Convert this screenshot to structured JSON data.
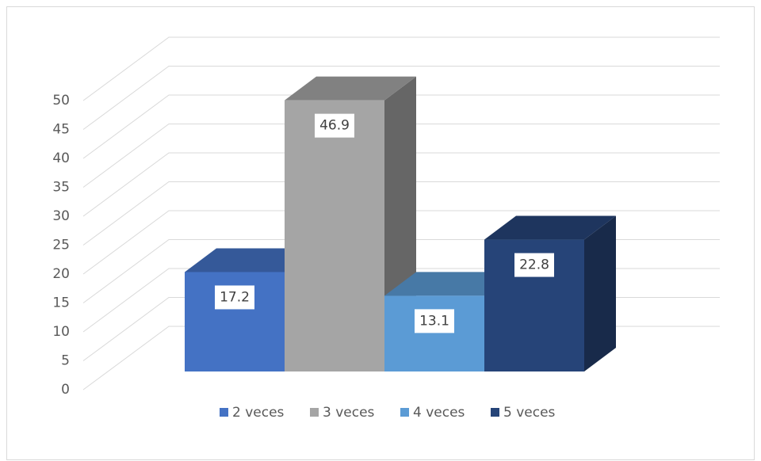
{
  "chart_data": {
    "type": "bar3d",
    "categories": [
      null
    ],
    "series": [
      {
        "name": "2 veces",
        "color": "#4472c4",
        "values": [
          17.2
        ]
      },
      {
        "name": "3 veces",
        "color": "#a5a5a5",
        "values": [
          46.9
        ]
      },
      {
        "name": "4 veces",
        "color": "#5b9bd5",
        "values": [
          13.1
        ]
      },
      {
        "name": "5 veces",
        "color": "#264478",
        "values": [
          22.8
        ]
      }
    ],
    "ylim": [
      0,
      50
    ],
    "yticks": [
      0,
      5,
      10,
      15,
      20,
      25,
      30,
      35,
      40,
      45,
      50
    ],
    "grid": true
  }
}
